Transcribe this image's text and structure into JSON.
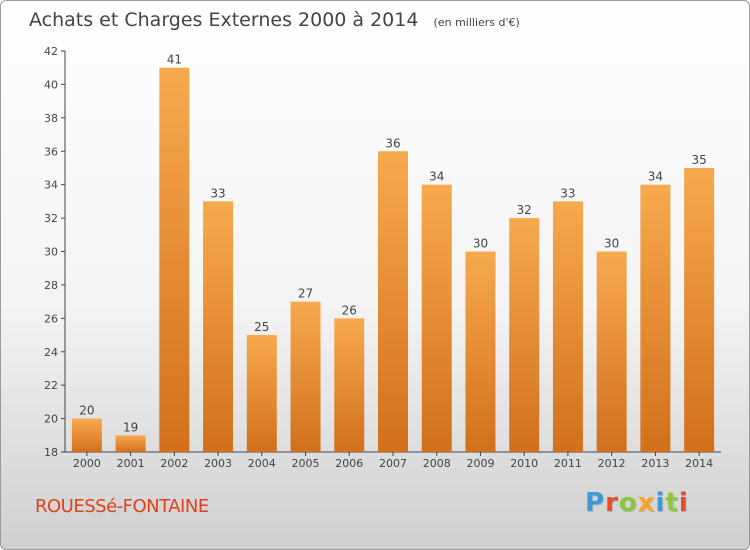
{
  "header": {
    "title": "Achats et Charges Externes 2000 à 2014",
    "subtitle": "(en milliers d'€)"
  },
  "footer": {
    "commune": "ROUESSé-FONTAINE",
    "logo_text": "Proxiti"
  },
  "colors": {
    "bar_top": "#f7a94e",
    "bar_bottom": "#d2701c",
    "axis": "#444444",
    "grid": "#cccccc",
    "commune": "#e0401a",
    "logo_letters": [
      "#3a9bd5",
      "#e84c2a",
      "#8cc63f",
      "#f6a623",
      "#3a9bd5",
      "#8cc63f",
      "#e84c2a"
    ]
  },
  "chart_data": {
    "type": "bar",
    "title": "Achats et Charges Externes 2000 à 2014",
    "subtitle": "(en milliers d'€)",
    "categories": [
      "2000",
      "2001",
      "2002",
      "2003",
      "2004",
      "2005",
      "2006",
      "2007",
      "2008",
      "2009",
      "2010",
      "2011",
      "2012",
      "2013",
      "2014"
    ],
    "values": [
      20,
      19,
      41,
      33,
      25,
      27,
      26,
      36,
      34,
      30,
      32,
      33,
      30,
      34,
      35
    ],
    "ylim": [
      18,
      42
    ],
    "yticks": [
      18,
      20,
      22,
      24,
      26,
      28,
      30,
      32,
      34,
      36,
      38,
      40,
      42
    ],
    "grid": false,
    "data_labels": true
  }
}
